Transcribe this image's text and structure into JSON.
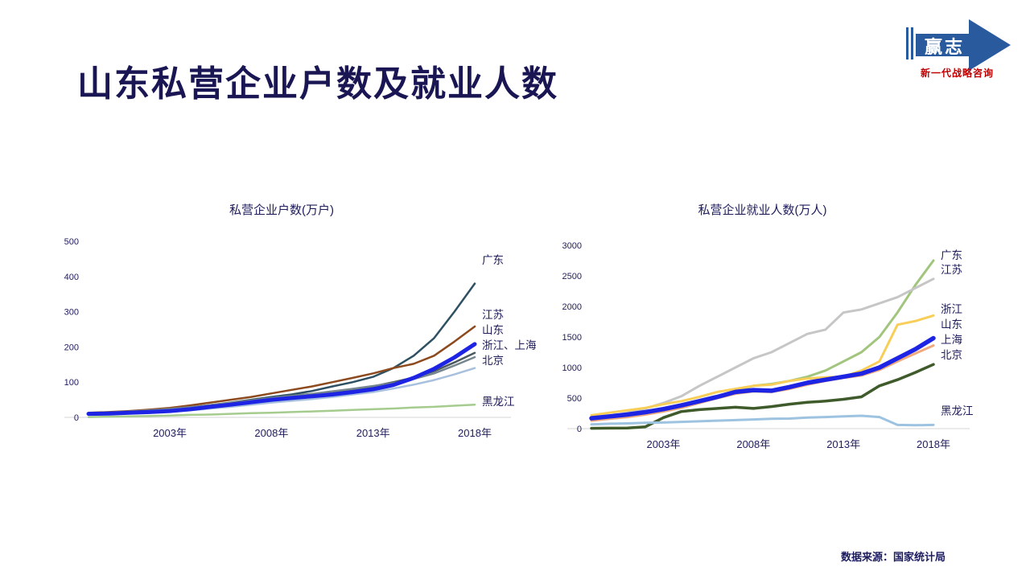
{
  "page": {
    "title": "山东私营企业户数及就业人数",
    "source": "数据来源：国家统计局",
    "text_color": "#1f1c5c",
    "title_color": "#191653",
    "axis_line_color": "#d6d6d6"
  },
  "logo": {
    "name": "赢志",
    "tagline": "新一代战略咨询",
    "arrow_color": "#2a5a9e",
    "tagline_color": "#c00000"
  },
  "chart_data": [
    {
      "type": "line",
      "title": "私营企业户数(万户)",
      "xlabel": "",
      "ylabel": "万户",
      "ylim": [
        0,
        500
      ],
      "yticks": [
        0,
        100,
        200,
        300,
        400,
        500
      ],
      "xlim": [
        1999,
        2018
      ],
      "xticks": [
        2003,
        2008,
        2013,
        2018
      ],
      "xtick_labels": [
        "2003年",
        "2008年",
        "2013年",
        "2018年"
      ],
      "grid": false,
      "legend_position": "right-of-line-ends",
      "years": [
        1999,
        2000,
        2001,
        2002,
        2003,
        2004,
        2005,
        2006,
        2007,
        2008,
        2009,
        2010,
        2011,
        2012,
        2013,
        2014,
        2015,
        2016,
        2017,
        2018
      ],
      "series": [
        {
          "name": "广东",
          "label": "广东",
          "color": "#2e5062",
          "width": 2.5,
          "label_y": 445,
          "values": [
            12,
            14,
            16,
            18,
            22,
            28,
            35,
            42,
            50,
            58,
            65,
            75,
            88,
            100,
            115,
            140,
            175,
            225,
            300,
            380
          ]
        },
        {
          "name": "江苏",
          "label": "江苏",
          "color": "#8c4a1e",
          "width": 2.5,
          "label_y": 290,
          "values": [
            13,
            15,
            18,
            22,
            27,
            34,
            42,
            50,
            58,
            68,
            78,
            88,
            100,
            112,
            125,
            140,
            152,
            175,
            215,
            258
          ]
        },
        {
          "name": "浙江",
          "label": "浙江、上海",
          "color": "#4c5a60",
          "width": 2.5,
          "label_y": 203,
          "values": [
            11,
            13,
            15,
            18,
            21,
            26,
            33,
            39,
            46,
            54,
            60,
            66,
            73,
            80,
            88,
            100,
            113,
            131,
            156,
            183
          ]
        },
        {
          "name": "上海",
          "label": "",
          "color": "#76868f",
          "width": 2.5,
          "label_y": 0,
          "values": [
            12,
            14,
            17,
            20,
            24,
            29,
            35,
            41,
            48,
            55,
            61,
            67,
            74,
            81,
            89,
            97,
            109,
            125,
            147,
            171
          ]
        },
        {
          "name": "北京",
          "label": "北京",
          "color": "#a7c0de",
          "width": 2.5,
          "label_y": 160,
          "values": [
            9,
            10,
            12,
            14,
            16,
            20,
            25,
            30,
            36,
            42,
            47,
            52,
            58,
            65,
            72,
            82,
            93,
            106,
            122,
            140
          ]
        },
        {
          "name": "黑龙江",
          "label": "黑龙江",
          "color": "#a5cc8e",
          "width": 2.5,
          "label_y": 43,
          "values": [
            1,
            2,
            3,
            4,
            5,
            7,
            8,
            10,
            12,
            13,
            15,
            17,
            19,
            21,
            23,
            25,
            28,
            30,
            33,
            36
          ]
        },
        {
          "name": "山东",
          "label": "山东",
          "color": "#1d24e3",
          "width": 5,
          "label_y": 247,
          "values": [
            10,
            11,
            13,
            15,
            18,
            23,
            30,
            36,
            43,
            50,
            55,
            60,
            65,
            72,
            80,
            92,
            112,
            138,
            170,
            208
          ]
        }
      ]
    },
    {
      "type": "line",
      "title": "私营企业就业人数(万人)",
      "xlabel": "",
      "ylabel": "万人",
      "ylim": [
        0,
        3000
      ],
      "yticks": [
        0,
        500,
        1000,
        1500,
        2000,
        2500,
        3000
      ],
      "xlim": [
        1999,
        2018
      ],
      "xticks": [
        2003,
        2008,
        2013,
        2018
      ],
      "xtick_labels": [
        "2003年",
        "2008年",
        "2013年",
        "2018年"
      ],
      "grid": false,
      "legend_position": "right-of-line-ends",
      "years": [
        1999,
        2000,
        2001,
        2002,
        2003,
        2004,
        2005,
        2006,
        2007,
        2008,
        2009,
        2010,
        2011,
        2012,
        2013,
        2014,
        2015,
        2016,
        2017,
        2018
      ],
      "series": [
        {
          "name": "广东",
          "label": "广东",
          "color": "#a2c57e",
          "width": 3,
          "label_y": 2830,
          "values": [
            150,
            180,
            210,
            240,
            290,
            350,
            420,
            520,
            620,
            700,
            730,
            780,
            850,
            950,
            1100,
            1250,
            1500,
            1900,
            2350,
            2750
          ]
        },
        {
          "name": "江苏",
          "label": "江苏",
          "color": "#c6c6c6",
          "width": 3,
          "label_y": 2590,
          "values": [
            150,
            200,
            260,
            330,
            420,
            530,
            700,
            850,
            1000,
            1150,
            1250,
            1400,
            1550,
            1620,
            1900,
            1950,
            2050,
            2150,
            2300,
            2450
          ]
        },
        {
          "name": "浙江",
          "label": "浙江",
          "color": "#f8ce58",
          "width": 3,
          "label_y": 1950,
          "values": [
            220,
            260,
            300,
            340,
            400,
            450,
            520,
            600,
            650,
            700,
            720,
            780,
            820,
            840,
            850,
            950,
            1100,
            1700,
            1760,
            1850
          ]
        },
        {
          "name": "上海",
          "label": "上海",
          "color": "#efa97e",
          "width": 3,
          "label_y": 1450,
          "values": [
            130,
            160,
            190,
            230,
            280,
            340,
            420,
            500,
            570,
            610,
            600,
            650,
            720,
            780,
            830,
            870,
            960,
            1100,
            1230,
            1360
          ]
        },
        {
          "name": "北京",
          "label": "北京",
          "color": "#3f5b2b",
          "width": 3.5,
          "label_y": 1200,
          "values": [
            5,
            8,
            10,
            30,
            180,
            280,
            310,
            330,
            350,
            330,
            360,
            400,
            430,
            450,
            480,
            520,
            700,
            800,
            920,
            1050
          ]
        },
        {
          "name": "黑龙江",
          "label": "黑龙江",
          "color": "#9dc3e0",
          "width": 3,
          "label_y": 280,
          "values": [
            70,
            80,
            85,
            95,
            100,
            110,
            120,
            130,
            140,
            150,
            160,
            165,
            180,
            190,
            200,
            210,
            190,
            60,
            55,
            60
          ]
        },
        {
          "name": "山东",
          "label": "山东",
          "color": "#1d24e3",
          "width": 5.5,
          "label_y": 1700,
          "values": [
            170,
            200,
            230,
            270,
            320,
            380,
            450,
            520,
            600,
            630,
            620,
            680,
            750,
            800,
            850,
            900,
            1000,
            1150,
            1300,
            1480
          ]
        }
      ]
    }
  ]
}
